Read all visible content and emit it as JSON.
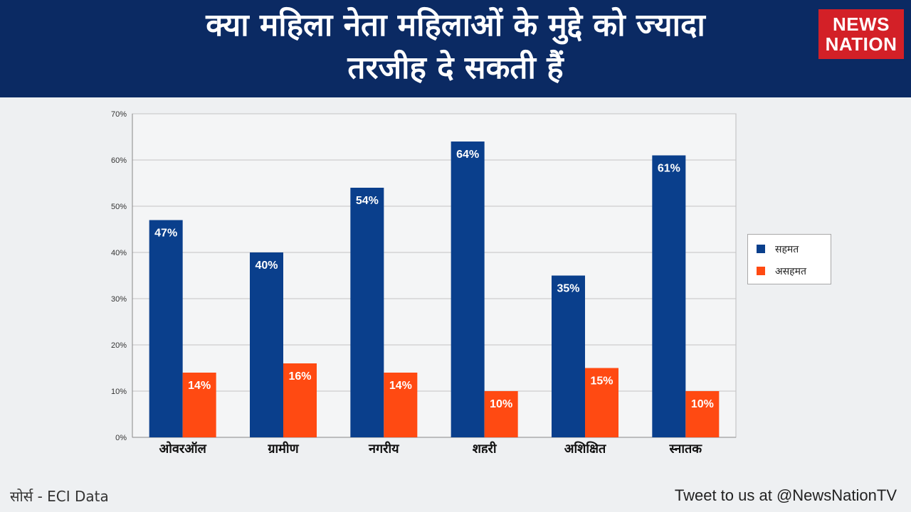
{
  "header": {
    "title_line1": "क्या महिला नेता महिलाओं के मुद्दे को ज्यादा",
    "title_line2": "तरजीह दे सकती हैं",
    "logo_line1": "NEWS",
    "logo_line2": "NATION"
  },
  "colors": {
    "header_bg": "#0b2a63",
    "agree": "#0a3f8c",
    "disagree": "#ff4a12",
    "logo_bg": "#d32027"
  },
  "chart_data": {
    "type": "bar",
    "title": "क्या महिला नेता महिलाओं के मुद्दे को ज्यादा तरजीह दे सकती हैं",
    "categories": [
      "ओवरऑल",
      "ग्रामीण",
      "नगरीय",
      "शहरी",
      "अशिक्षित",
      "स्नातक"
    ],
    "series": [
      {
        "name": "सहमत",
        "values": [
          47,
          40,
          54,
          64,
          35,
          61
        ],
        "labels": [
          "47%",
          "40%",
          "54%",
          "64%",
          "35%",
          "61%"
        ]
      },
      {
        "name": "असहमत",
        "values": [
          14,
          16,
          14,
          10,
          15,
          10
        ],
        "labels": [
          "14%",
          "16%",
          "14%",
          "10%",
          "15%",
          "10%"
        ]
      }
    ],
    "ylim": [
      0,
      70
    ],
    "yticks": [
      "0%",
      "10%",
      "20%",
      "30%",
      "40%",
      "50%",
      "60%",
      "70%"
    ],
    "xlabel": "",
    "ylabel": "",
    "grid": true,
    "legend_position": "right"
  },
  "footer": {
    "source": "सोर्स - ECI Data",
    "tweet": "Tweet to us at @NewsNationTV"
  }
}
